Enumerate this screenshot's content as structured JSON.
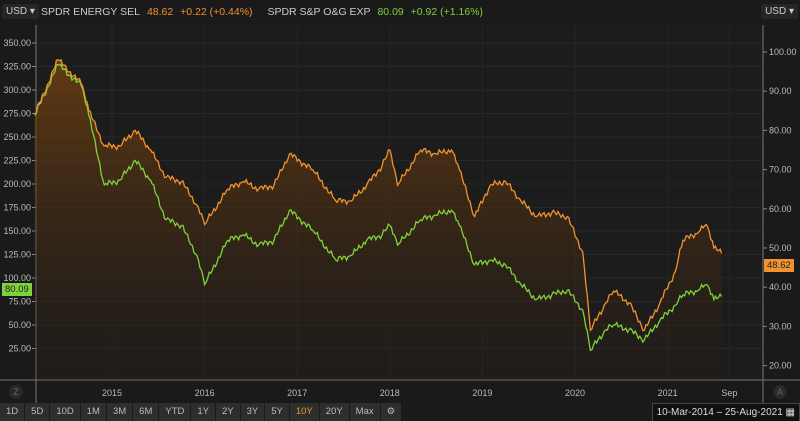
{
  "currency_left": "USD",
  "currency_right": "USD",
  "legend": [
    {
      "name": "SPDR ENERGY SEL",
      "last": "48.62",
      "change": "+0.22 (+0.44%)",
      "color": "#f0922e"
    },
    {
      "name": "SPDR S&P O&G EXP",
      "last": "80.09",
      "change": "+0.92 (+1.16%)",
      "color": "#7ed23a"
    }
  ],
  "ranges": [
    "1D",
    "5D",
    "10D",
    "1M",
    "3M",
    "6M",
    "YTD",
    "1Y",
    "2Y",
    "3Y",
    "5Y",
    "10Y",
    "20Y",
    "Max"
  ],
  "active_range": "10Y",
  "date_range": "10-Mar-2014  –  25-Aug-2021",
  "corner_left": "Z",
  "corner_right": "A",
  "chart_data": {
    "type": "line",
    "x_tick_labels": [
      "2015",
      "2016",
      "2017",
      "2018",
      "2019",
      "2020",
      "2021",
      "Sep"
    ],
    "left_axis": {
      "ticks": [
        "25.00",
        "50.00",
        "75.00",
        "100.00",
        "125.00",
        "150.00",
        "175.00",
        "200.00",
        "225.00",
        "250.00",
        "275.00",
        "300.00",
        "325.00",
        "350.00"
      ],
      "range": [
        0,
        360
      ]
    },
    "right_axis": {
      "ticks": [
        "20.00",
        "30.00",
        "40.00",
        "50.00",
        "60.00",
        "70.00",
        "80.00",
        "90.00",
        "100.00"
      ],
      "range": [
        16.5,
        102
      ]
    },
    "grid": true,
    "dates": [
      "2014-03",
      "2014-06",
      "2014-09",
      "2014-10",
      "2014-12",
      "2015-02",
      "2015-04",
      "2015-06",
      "2015-08",
      "2015-10",
      "2015-12",
      "2016-01",
      "2016-04",
      "2016-06",
      "2016-08",
      "2016-10",
      "2016-12",
      "2017-03",
      "2017-06",
      "2017-08",
      "2017-10",
      "2017-12",
      "2018-01",
      "2018-02",
      "2018-05",
      "2018-07",
      "2018-09",
      "2018-10",
      "2018-12",
      "2019-02",
      "2019-04",
      "2019-06",
      "2019-08",
      "2019-10",
      "2019-12",
      "2020-02",
      "2020-03",
      "2020-05",
      "2020-06",
      "2020-08",
      "2020-10",
      "2020-12",
      "2021-02",
      "2021-03",
      "2021-05",
      "2021-06",
      "2021-07",
      "2021-08"
    ],
    "series": [
      {
        "name": "SPDR ENERGY SEL",
        "axis": "right",
        "color": "#f0922e",
        "last_label": "48.62",
        "values": [
          84,
          98,
          92,
          85,
          76,
          76,
          80,
          75,
          68,
          67,
          61,
          56,
          65,
          67,
          65,
          66,
          74,
          70,
          62,
          62,
          66,
          71,
          75,
          66,
          75,
          74,
          75,
          70,
          58,
          66,
          67,
          62,
          58,
          59,
          58,
          49,
          29,
          36,
          39,
          36,
          29,
          36,
          44,
          52,
          54,
          56,
          50,
          48.62
        ]
      },
      {
        "name": "SPDR S&P O&G EXP",
        "axis": "left",
        "color": "#7ed23a",
        "last_label": "80.09",
        "values": [
          273,
          327,
          305,
          273,
          199,
          204,
          225,
          204,
          162,
          156,
          124,
          93,
          140,
          146,
          135,
          140,
          172,
          151,
          119,
          124,
          140,
          146,
          156,
          135,
          162,
          167,
          172,
          156,
          114,
          119,
          114,
          93,
          77,
          82,
          87,
          66,
          23,
          45,
          50,
          45,
          34,
          55,
          71,
          82,
          87,
          93,
          77,
          80.09
        ]
      }
    ]
  }
}
